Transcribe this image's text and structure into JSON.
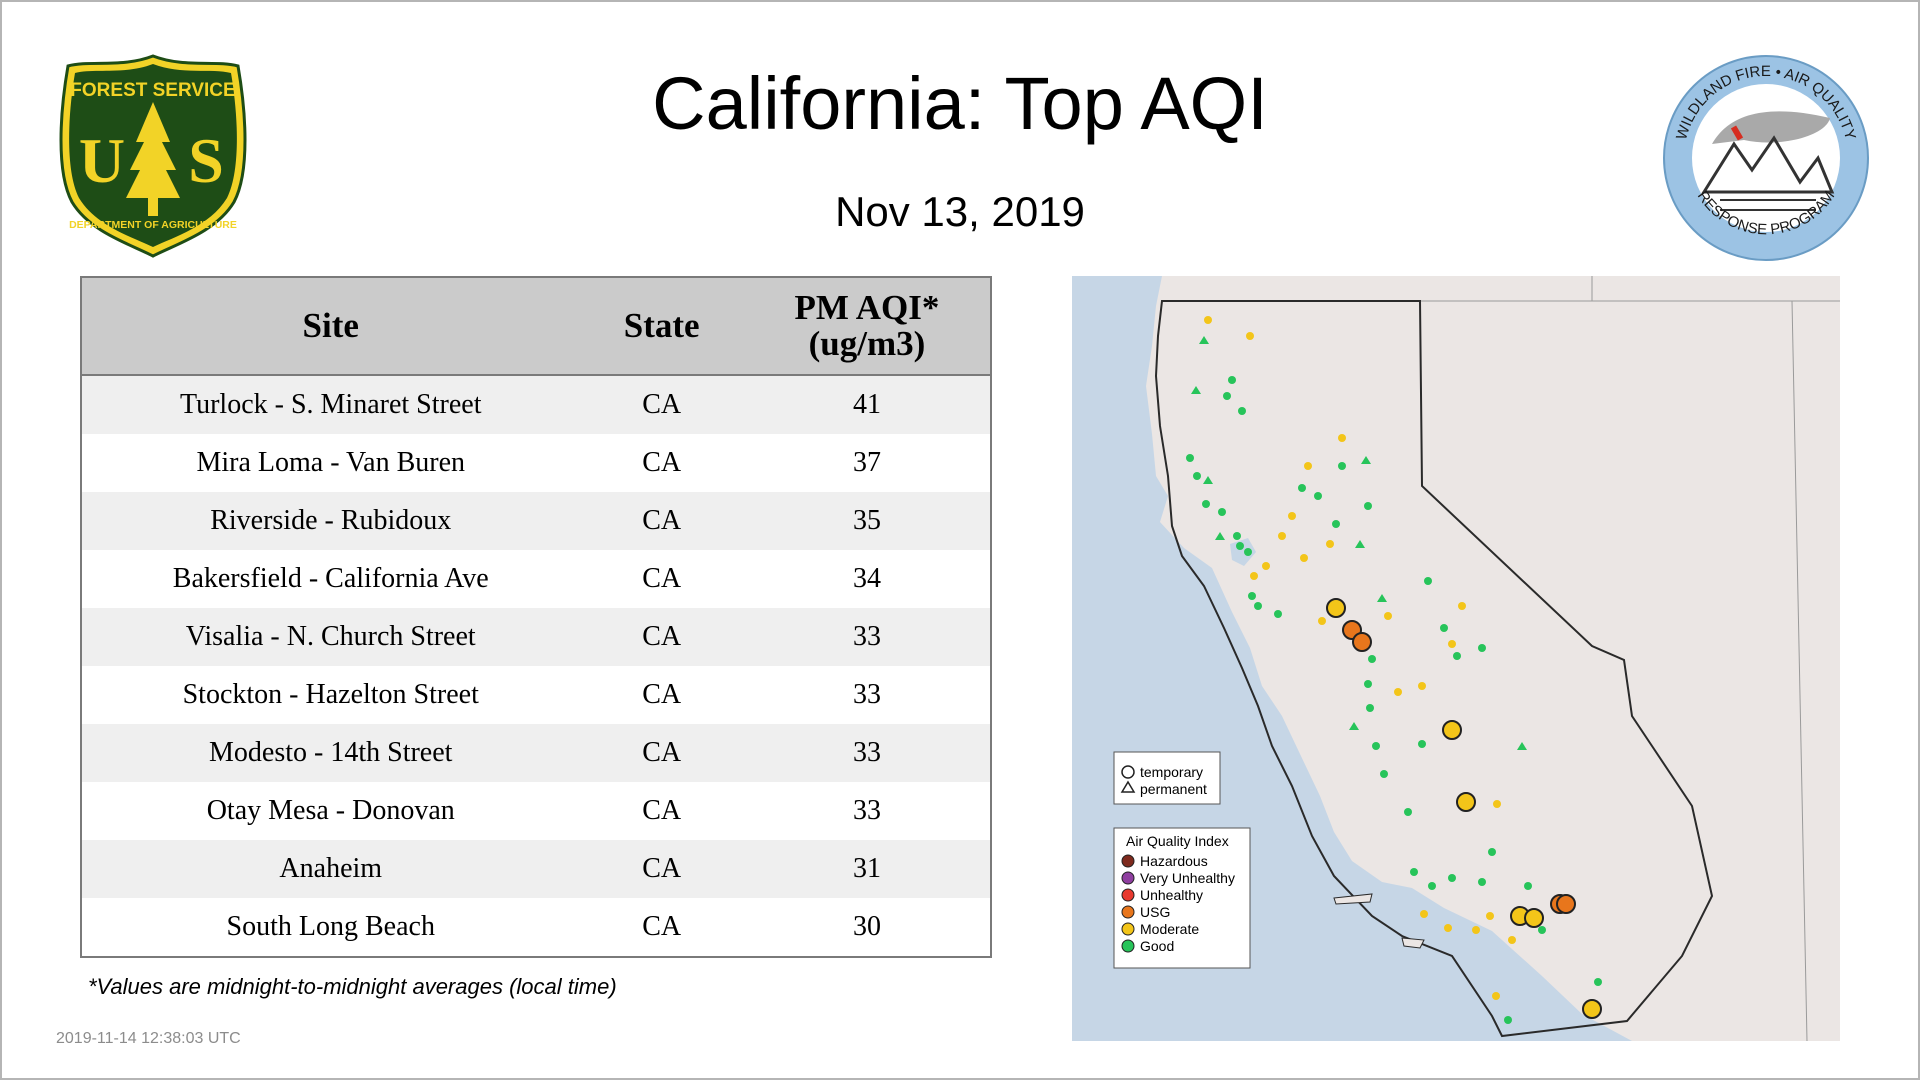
{
  "header": {
    "title": "California: Top AQI",
    "date": "Nov 13, 2019"
  },
  "logos": {
    "forest_service": {
      "top_text": "FOREST SERVICE",
      "letters": "U S",
      "bottom_text": "DEPARTMENT OF AGRICULTURE",
      "color": "#1e4d16",
      "accent": "#f2d327"
    },
    "wildland_fire": {
      "top_text": "WILDLAND FIRE • AIR QUALITY",
      "bottom_text": "RESPONSE PROGRAM",
      "color": "#9cc3e4"
    }
  },
  "table": {
    "headers": {
      "site": "Site",
      "state": "State",
      "pm_line1": "PM AQI*",
      "pm_line2": "(ug/m3)"
    },
    "rows": [
      {
        "site": "Turlock - S. Minaret Street",
        "state": "CA",
        "value": "41"
      },
      {
        "site": "Mira Loma - Van Buren",
        "state": "CA",
        "value": "37"
      },
      {
        "site": "Riverside - Rubidoux",
        "state": "CA",
        "value": "35"
      },
      {
        "site": "Bakersfield - California Ave",
        "state": "CA",
        "value": "34"
      },
      {
        "site": "Visalia - N. Church Street",
        "state": "CA",
        "value": "33"
      },
      {
        "site": "Stockton - Hazelton Street",
        "state": "CA",
        "value": "33"
      },
      {
        "site": "Modesto - 14th Street",
        "state": "CA",
        "value": "33"
      },
      {
        "site": "Otay Mesa - Donovan",
        "state": "CA",
        "value": "33"
      },
      {
        "site": "Anaheim",
        "state": "CA",
        "value": "31"
      },
      {
        "site": "South Long Beach",
        "state": "CA",
        "value": "30"
      }
    ]
  },
  "footnote": "*Values are midnight-to-midnight averages (local time)",
  "timestamp": "2019-11-14 12:38:03 UTC",
  "map": {
    "legend_type": {
      "temporary": "temporary",
      "permanent": "permanent"
    },
    "legend_aqi": {
      "title": "Air Quality Index",
      "items": [
        {
          "label": "Hazardous",
          "color": "#7e2a1e"
        },
        {
          "label": "Very Unhealthy",
          "color": "#8f3fa0"
        },
        {
          "label": "Unhealthy",
          "color": "#e8392f"
        },
        {
          "label": "USG",
          "color": "#e8761c"
        },
        {
          "label": "Moderate",
          "color": "#f3c519"
        },
        {
          "label": "Good",
          "color": "#27c45a"
        }
      ]
    },
    "colors": {
      "land": "#ebe6e4",
      "water": "#c6d6e6",
      "border": "#2a2a2a"
    }
  }
}
